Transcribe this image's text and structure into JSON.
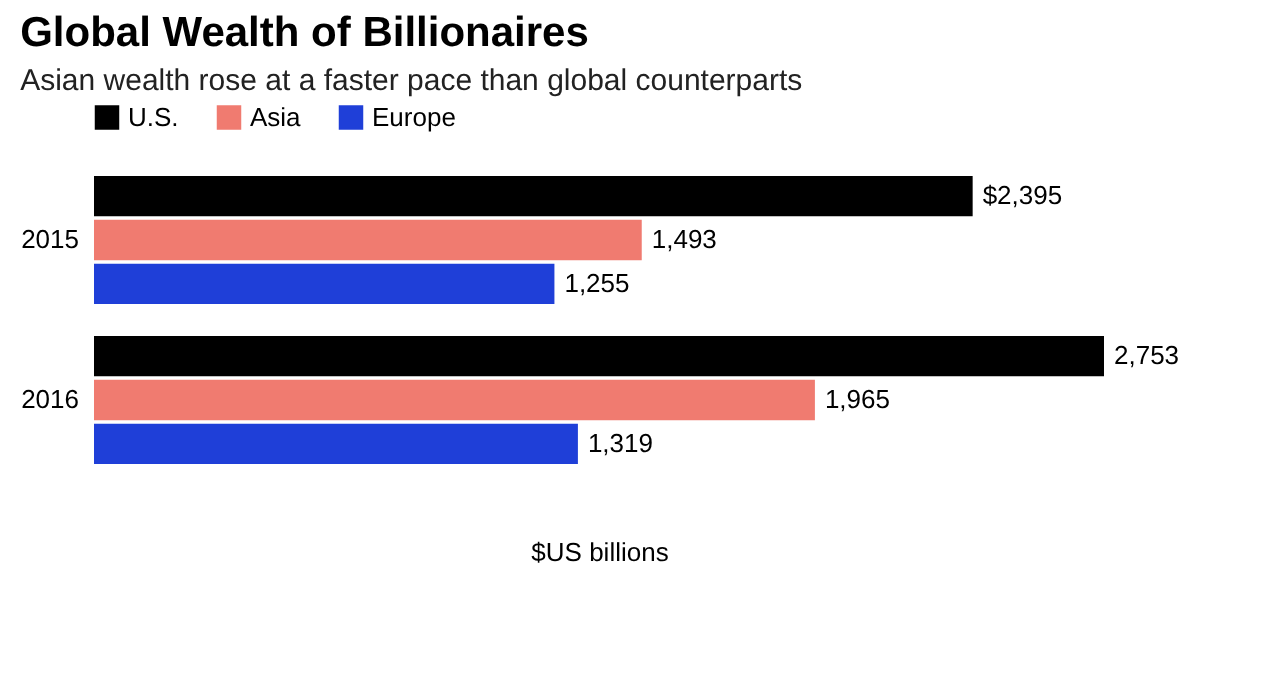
{
  "chart_data": {
    "type": "bar",
    "orientation": "horizontal",
    "title": "Global Wealth of Billionaires",
    "subtitle": "Asian wealth rose at a faster pace than global counterparts",
    "xlabel": "$US billions",
    "categories": [
      "2015",
      "2016"
    ],
    "legend": "top left",
    "series": [
      {
        "name": "U.S.",
        "color": "#000000",
        "values": [
          2395,
          2753
        ],
        "value_labels": [
          "$2,395",
          "2,753"
        ]
      },
      {
        "name": "Asia",
        "color": "#f07b70",
        "values": [
          1493,
          1965
        ],
        "value_labels": [
          "1,493",
          "1,965"
        ]
      },
      {
        "name": "Europe",
        "color": "#1f3fd8",
        "values": [
          1255,
          1319
        ],
        "value_labels": [
          "1,255",
          "1,319"
        ]
      }
    ]
  }
}
